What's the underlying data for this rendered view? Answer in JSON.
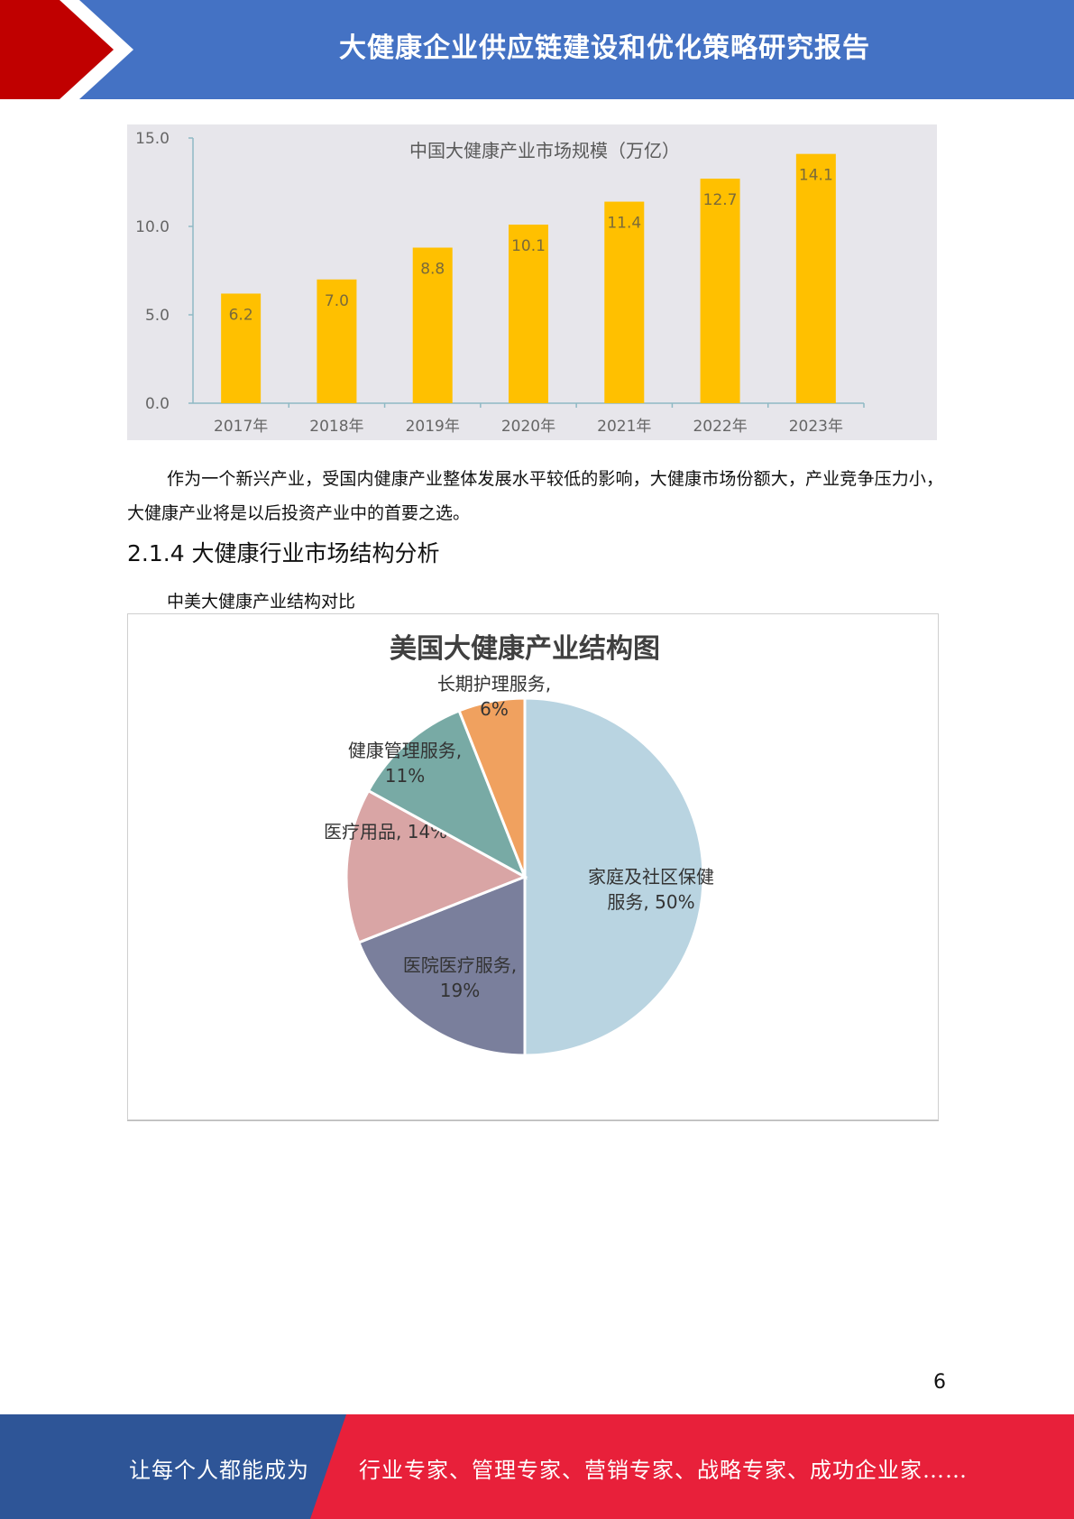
{
  "header": {
    "title": "大健康企业供应链建设和优化策略研究报告"
  },
  "bar_chart_data": {
    "type": "bar",
    "title": "中国大健康产业市场规模（万亿）",
    "categories": [
      "2017年",
      "2018年",
      "2019年",
      "2020年",
      "2021年",
      "2022年",
      "2023年"
    ],
    "values": [
      6.2,
      7.0,
      8.8,
      10.1,
      11.4,
      12.7,
      14.1
    ],
    "value_labels": [
      "6.2",
      "7.0",
      "8.8",
      "10.1",
      "11.4",
      "12.7",
      "14.1"
    ],
    "ylim": [
      0,
      15
    ],
    "yticks": [
      "0.0",
      "5.0",
      "10.0",
      "15.0"
    ],
    "bar_color": "#ffc000"
  },
  "body": {
    "paragraph": "作为一个新兴产业，受国内健康产业整体发展水平较低的影响，大健康市场份额大，产业竞争压力小，大健康产业将是以后投资产业中的首要之选。",
    "heading": "2.1.4 大健康行业市场结构分析",
    "caption": "中美大健康产业结构对比"
  },
  "pie_chart_data": {
    "type": "pie",
    "title": "美国大健康产业结构图",
    "slices": [
      {
        "label": "家庭及社区保健服务",
        "value": 50,
        "color": "#b9d4e1"
      },
      {
        "label": "医院医疗服务",
        "value": 19,
        "color": "#7a7f9c"
      },
      {
        "label": "医疗用品",
        "value": 14,
        "color": "#d9a5a5"
      },
      {
        "label": "健康管理服务",
        "value": 11,
        "color": "#78aaa5"
      },
      {
        "label": "长期护理服务",
        "value": 6,
        "color": "#f0a15f"
      }
    ],
    "label_lines": [
      [
        "家庭及社区保健",
        "服务, 50%"
      ],
      [
        "医院医疗服务,",
        "19%"
      ],
      [
        "医疗用品, 14%"
      ],
      [
        "健康管理服务,",
        "11%"
      ],
      [
        "长期护理服务,",
        "6%"
      ]
    ]
  },
  "page_number": "6",
  "footer": {
    "left": "让每个人都能成为",
    "right": "行业专家、管理专家、营销专家、战略专家、成功企业家……",
    "left_color": "#2e5597",
    "right_color": "#e8203a"
  }
}
